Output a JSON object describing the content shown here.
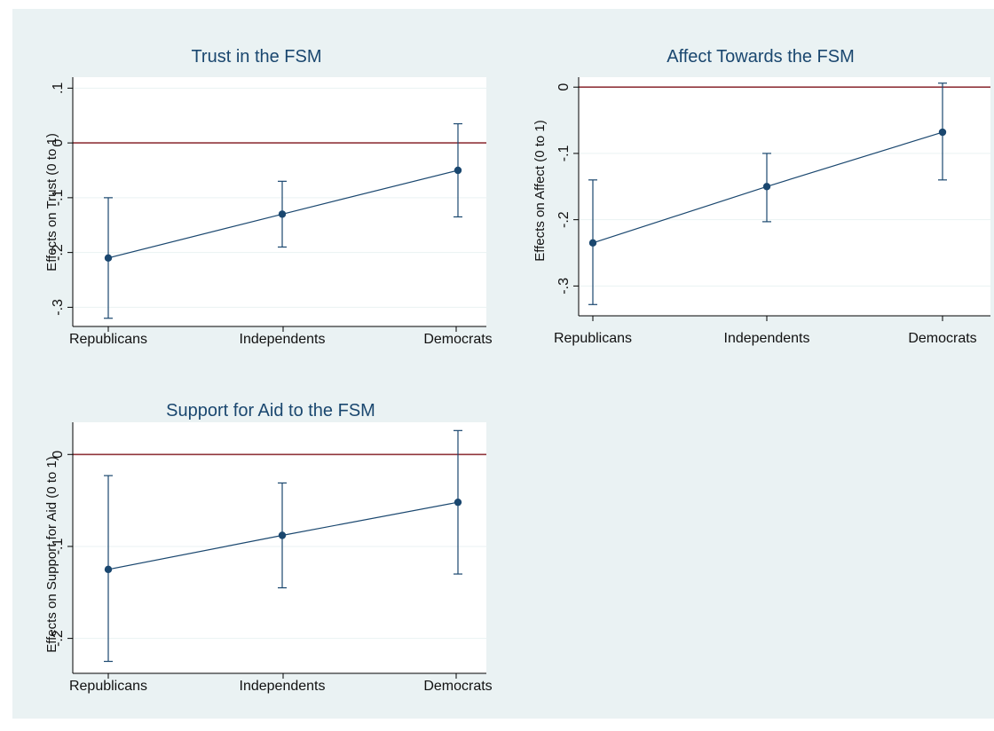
{
  "chart_data": [
    {
      "type": "scatter",
      "title": "Trust in the FSM",
      "ylabel": "Effects on Trust (0 to 1)",
      "categories": [
        "Republicans",
        "Independents",
        "Democrats"
      ],
      "yticks": [
        {
          "value": 0.1,
          "label": ".1"
        },
        {
          "value": 0,
          "label": "0"
        },
        {
          "value": -0.1,
          "label": "-.1"
        },
        {
          "value": -0.2,
          "label": "-.2"
        },
        {
          "value": -0.3,
          "label": "-.3"
        }
      ],
      "ylim": [
        -0.335,
        0.12
      ],
      "grid": true,
      "reference_line": 0,
      "series": [
        {
          "values": [
            -0.21,
            -0.13,
            -0.05
          ],
          "ci_low": [
            -0.32,
            -0.19,
            -0.135
          ],
          "ci_high": [
            -0.1,
            -0.07,
            0.035
          ]
        }
      ]
    },
    {
      "type": "scatter",
      "title": "Affect Towards the FSM",
      "ylabel": "Effects on Affect (0 to 1)",
      "categories": [
        "Republicans",
        "Independents",
        "Democrats"
      ],
      "yticks": [
        {
          "value": 0,
          "label": "0"
        },
        {
          "value": -0.1,
          "label": "-.1"
        },
        {
          "value": -0.2,
          "label": "-.2"
        },
        {
          "value": -0.3,
          "label": "-.3"
        }
      ],
      "ylim": [
        -0.345,
        0.015
      ],
      "grid": true,
      "reference_line": 0,
      "series": [
        {
          "values": [
            -0.235,
            -0.15,
            -0.068
          ],
          "ci_low": [
            -0.328,
            -0.203,
            -0.14
          ],
          "ci_high": [
            -0.14,
            -0.1,
            0.006
          ]
        }
      ]
    },
    {
      "type": "scatter",
      "title": "Support for Aid to the FSM",
      "ylabel": "Effects on Support for Aid (0 to 1)",
      "categories": [
        "Republicans",
        "Independents",
        "Democrats"
      ],
      "yticks": [
        {
          "value": 0,
          "label": "0"
        },
        {
          "value": -0.1,
          "label": "-.1"
        },
        {
          "value": -0.2,
          "label": "-.2"
        }
      ],
      "ylim": [
        -0.238,
        0.035
      ],
      "grid": true,
      "reference_line": 0,
      "series": [
        {
          "values": [
            -0.125,
            -0.088,
            -0.052
          ],
          "ci_low": [
            -0.225,
            -0.145,
            -0.13
          ],
          "ci_high": [
            -0.023,
            -0.031,
            0.026
          ]
        }
      ]
    }
  ],
  "colors": {
    "background_outer": "#eaf2f3",
    "plot_background": "#ffffff",
    "grid": "#eaf2f3",
    "reference_line": "#90353b",
    "series": "#1a476f",
    "axis": "#000000"
  }
}
